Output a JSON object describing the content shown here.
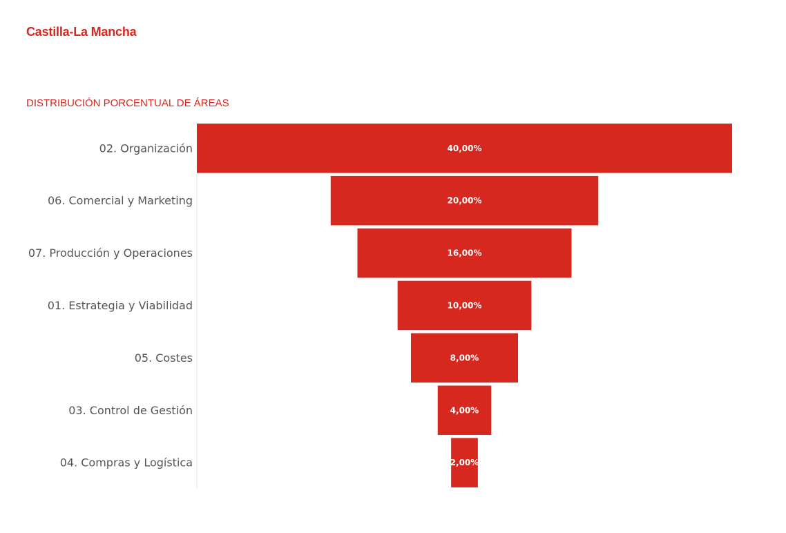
{
  "header": {
    "title": "Castilla-La Mancha"
  },
  "chart_data": {
    "type": "funnel",
    "title": "DISTRIBUCIÓN PORCENTUAL DE ÁREAS",
    "categories": [
      "02. Organización",
      "06. Comercial y Marketing",
      "07. Producción y Operaciones",
      "01. Estrategia y Viabilidad",
      "05. Costes",
      "03. Control de Gestión",
      "04. Compras y Logística"
    ],
    "values": [
      40,
      20,
      16,
      10,
      8,
      4,
      2
    ],
    "value_labels": [
      "40,00%",
      "20,00%",
      "16,00%",
      "10,00%",
      "8,00%",
      "4,00%",
      "2,00%"
    ],
    "bar_color": "#d7281f"
  }
}
